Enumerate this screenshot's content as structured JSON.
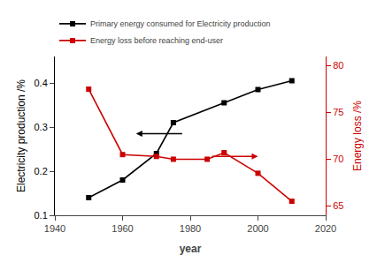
{
  "chart_data": {
    "type": "line",
    "xlabel": "year",
    "ylabel": "Electricity production /%",
    "y2label": "Energy loss /%",
    "xlim": [
      1940,
      2020
    ],
    "xticks": [
      1940,
      1960,
      1980,
      2000,
      2020
    ],
    "ylim": [
      0.1,
      0.46
    ],
    "yticks": [
      0.1,
      0.2,
      0.3,
      0.4
    ],
    "y2lim": [
      64,
      81
    ],
    "y2ticks": [
      65,
      70,
      75,
      80
    ],
    "grid": false,
    "legend": "top",
    "series": [
      {
        "name": "Primary energy consumed for Electricity production",
        "color": "#000000",
        "marker": "square",
        "line_style": "solid",
        "x": [
          1950,
          1960,
          1970,
          1975,
          1990,
          2000,
          2010
        ],
        "values": [
          0.14,
          0.18,
          0.24,
          0.31,
          0.355,
          0.385,
          0.405
        ]
      },
      {
        "name": "Energy loss before reaching end-user",
        "color": "#cc0000",
        "axis": "y2",
        "marker": "square",
        "line_style": "solid",
        "x": [
          1950,
          1960,
          1970,
          1975,
          1985,
          1990,
          2000,
          2010
        ],
        "values": [
          77.5,
          70.5,
          70.3,
          70.0,
          70.0,
          70.7,
          68.5,
          65.5
        ]
      }
    ],
    "annotations": [
      {
        "x": 1964,
        "x_start": 1978,
        "y": 0.285,
        "color": "#000000"
      },
      {
        "x": 2000,
        "x_start": 1986,
        "y": 70.3,
        "axis": "y2",
        "color": "#cc0000"
      }
    ]
  }
}
